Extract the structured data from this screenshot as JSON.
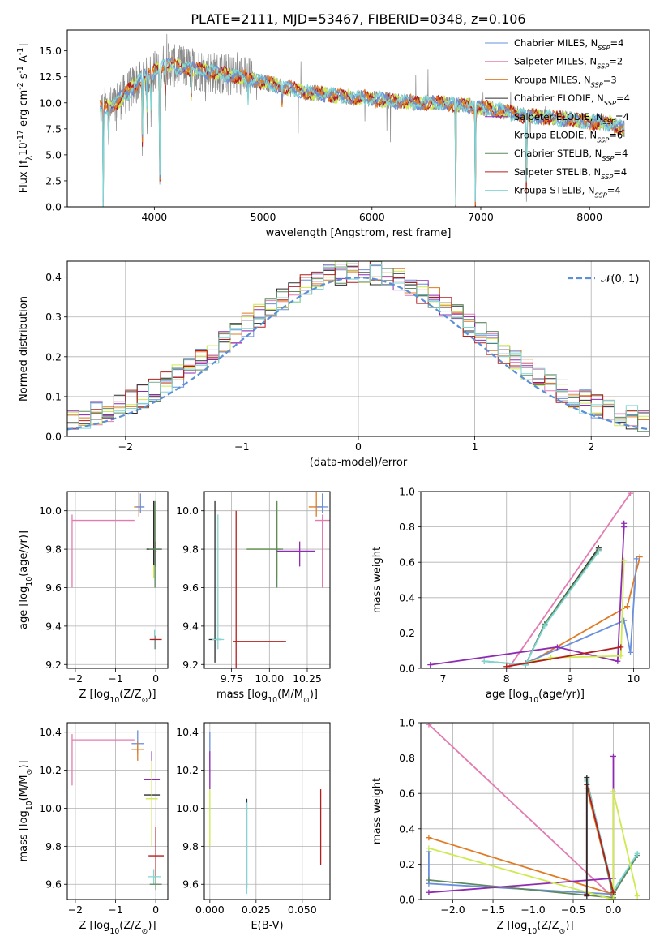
{
  "figure_title": "PLATE=2111, MJD=53467, FIBERID=0348, z=0.106",
  "colors": {
    "Chabrier MILES": "#6a8fdc",
    "Salpeter MILES": "#e37bb1",
    "Kroupa MILES": "#e07a23",
    "Chabrier ELODIE": "#2b2b2b",
    "Salpeter ELODIE": "#8f2bb3",
    "Kroupa ELODIE": "#cdea4f",
    "Chabrier STELIB": "#5f8a5f",
    "Salpeter STELIB": "#b31f1f",
    "Kroupa STELIB": "#7fd6d3",
    "data": "#888888",
    "normal": "#5b8fd6",
    "grid": "#b0b0b0"
  },
  "chart_data": [
    {
      "id": "spectrum",
      "type": "line",
      "title": "PLATE=2111, MJD=53467, FIBERID=0348, z=0.106",
      "xlabel": "wavelength [Angstrom, rest frame]",
      "ylabel": "Flux [f$_\\lambda$10$^{-17}$ erg cm$^{-2}$ s$^{-1}$ A$^{-1}$]",
      "xlim": [
        3200,
        8550
      ],
      "ylim": [
        0,
        17
      ],
      "xticks": [
        4000,
        5000,
        6000,
        7000,
        8000
      ],
      "yticks": [
        0.0,
        2.5,
        5.0,
        7.5,
        10.0,
        12.5,
        15.0
      ],
      "grid": false,
      "legend_position": "right",
      "legend": [
        {
          "label": "Chabrier MILES, N",
          "sub": "SSP",
          "tail": "=4",
          "series": "Chabrier MILES"
        },
        {
          "label": "Salpeter MILES, N",
          "sub": "SSP",
          "tail": "=2",
          "series": "Salpeter MILES"
        },
        {
          "label": "Kroupa MILES, N",
          "sub": "SSP",
          "tail": "=3",
          "series": "Kroupa MILES"
        },
        {
          "label": "Chabrier ELODIE, N",
          "sub": "SSP",
          "tail": "=4",
          "series": "Chabrier ELODIE"
        },
        {
          "label": "Salpeter ELODIE, N",
          "sub": "SSP",
          "tail": "=4",
          "series": "Salpeter ELODIE"
        },
        {
          "label": "Kroupa ELODIE, N",
          "sub": "SSP",
          "tail": "=6",
          "series": "Kroupa ELODIE"
        },
        {
          "label": "Chabrier STELIB, N",
          "sub": "SSP",
          "tail": "=4",
          "series": "Chabrier STELIB"
        },
        {
          "label": "Salpeter STELIB, N",
          "sub": "SSP",
          "tail": "=4",
          "series": "Salpeter STELIB"
        },
        {
          "label": "Kroupa STELIB, N",
          "sub": "SSP",
          "tail": "=4",
          "series": "Kroupa STELIB"
        }
      ],
      "continuum": {
        "x": [
          3500,
          3600,
          3700,
          3800,
          3900,
          4000,
          4100,
          4200,
          4400,
          4600,
          4800,
          5000,
          5200,
          5400,
          5600,
          5800,
          6000,
          6200,
          6400,
          6600,
          6800,
          7000,
          7200,
          7400,
          7600,
          7800,
          8000,
          8200,
          8320
        ],
        "y": [
          9.5,
          9.6,
          10.5,
          11.5,
          12.5,
          13.0,
          13.8,
          13.5,
          13.2,
          12.8,
          12.5,
          12.0,
          11.5,
          11.0,
          10.8,
          10.5,
          10.4,
          10.2,
          10.0,
          10.0,
          9.8,
          9.6,
          9.2,
          8.8,
          8.6,
          8.4,
          8.2,
          8.0,
          7.5
        ]
      },
      "absorption_lines": [
        {
          "x": 3530,
          "depth": 9.5
        },
        {
          "x": 3580,
          "depth": 3.0
        },
        {
          "x": 3890,
          "depth": 6.0
        },
        {
          "x": 3934,
          "depth": 4.5
        },
        {
          "x": 3970,
          "depth": 4.0
        },
        {
          "x": 4050,
          "depth": 13.5
        },
        {
          "x": 4102,
          "depth": 3.0
        },
        {
          "x": 4340,
          "depth": 2.5
        },
        {
          "x": 4861,
          "depth": 2.0
        },
        {
          "x": 5175,
          "depth": 1.5
        },
        {
          "x": 6770,
          "depth": 10.0
        },
        {
          "x": 6950,
          "depth": 9.5
        },
        {
          "x": 7420,
          "depth": 8.8
        }
      ]
    },
    {
      "id": "residuals",
      "type": "area",
      "xlabel": "(data-model)/error",
      "ylabel": "Normed distribution",
      "xlim": [
        -2.5,
        2.5
      ],
      "ylim": [
        0,
        0.44
      ],
      "xticks": [
        -2,
        -1,
        0,
        1,
        2
      ],
      "yticks": [
        0.0,
        0.1,
        0.2,
        0.3,
        0.4
      ],
      "grid": true,
      "legend_position": "top-right",
      "legend": [
        {
          "label": "𝒩(0, 1)",
          "series": "normal"
        }
      ],
      "normal_curve": {
        "mu": 0,
        "sigma": 1
      },
      "bin_width": 0.1
    },
    {
      "id": "age_vs_Z",
      "type": "scatter",
      "xlabel": "Z [log$_{10}$(Z/Z$_\\odot$)]",
      "ylabel": "age  [log$_{10}$(age/yr)]",
      "xlim": [
        -2.2,
        0.3
      ],
      "ylim": [
        9.18,
        10.1
      ],
      "xticks": [
        -2,
        -1,
        0
      ],
      "yticks": [
        9.2,
        9.4,
        9.6,
        9.8,
        10.0
      ],
      "grid": true,
      "series": [
        {
          "name": "Salpeter MILES",
          "x": -2.08,
          "y": 9.95,
          "xerr": [
            0,
            1.55
          ],
          "yerr": [
            0.35,
            0.03
          ]
        },
        {
          "name": "Kroupa MILES",
          "x": -0.42,
          "y": 10.02,
          "xerr": [
            0.12,
            0.12
          ],
          "yerr": [
            0.05,
            0.09
          ]
        },
        {
          "name": "Chabrier MILES",
          "x": -0.38,
          "y": 10.02,
          "xerr": [
            0.1,
            0.1
          ],
          "yerr": [
            0.03,
            0.07
          ]
        },
        {
          "name": "Kroupa ELODIE",
          "x": -0.05,
          "y": 9.8,
          "xerr": [
            0.06,
            0.06
          ],
          "yerr": [
            0.15,
            0.2
          ]
        },
        {
          "name": "Salpeter ELODIE",
          "x": 0.0,
          "y": 9.79,
          "xerr": [
            0.02,
            0.02
          ],
          "yerr": [
            0.08,
            0.05
          ]
        },
        {
          "name": "Chabrier ELODIE",
          "x": -0.05,
          "y": 9.8,
          "xerr": [
            0.18,
            0.2
          ],
          "yerr": [
            0.08,
            0.25
          ]
        },
        {
          "name": "Chabrier STELIB",
          "x": -0.02,
          "y": 9.8,
          "xerr": [
            0.15,
            0.15
          ],
          "yerr": [
            0.2,
            0.25
          ]
        },
        {
          "name": "Kroupa STELIB",
          "x": -0.03,
          "y": 9.33,
          "xerr": [
            0.06,
            0.06
          ],
          "yerr": [
            0.05,
            0.05
          ]
        },
        {
          "name": "Salpeter STELIB",
          "x": 0.0,
          "y": 9.33,
          "xerr": [
            0.15,
            0.15
          ],
          "yerr": [
            0.05,
            0.02
          ]
        }
      ]
    },
    {
      "id": "age_vs_mass",
      "type": "scatter",
      "xlabel": "mass [log$_{10}$(M/M$_\\odot$)]",
      "xlim": [
        9.57,
        10.4
      ],
      "ylim": [
        9.18,
        10.1
      ],
      "xticks": [
        9.75,
        10.0,
        10.25
      ],
      "xticklabels": [
        "9.75",
        "10.00",
        "10.25"
      ],
      "yticks": [
        9.2,
        9.4,
        9.6,
        9.8,
        10.0
      ],
      "grid": true,
      "series": [
        {
          "name": "Salpeter MILES",
          "x": 10.35,
          "y": 9.95,
          "xerr": [
            0.05,
            0.05
          ],
          "yerr": [
            0.35,
            0.03
          ]
        },
        {
          "name": "Kroupa MILES",
          "x": 10.31,
          "y": 10.02,
          "xerr": [
            0.05,
            0.04
          ],
          "yerr": [
            0.05,
            0.09
          ]
        },
        {
          "name": "Chabrier MILES",
          "x": 10.35,
          "y": 10.02,
          "xerr": [
            0.04,
            0.04
          ],
          "yerr": [
            0.03,
            0.07
          ]
        },
        {
          "name": "Kroupa ELODIE",
          "x": 10.05,
          "y": 9.8,
          "xerr": [
            0.2,
            0.02
          ],
          "yerr": [
            0.15,
            0.25
          ]
        },
        {
          "name": "Chabrier STELIB",
          "x": 10.05,
          "y": 9.8,
          "xerr": [
            0.2,
            0.04
          ],
          "yerr": [
            0.2,
            0.25
          ]
        },
        {
          "name": "Salpeter ELODIE",
          "x": 10.2,
          "y": 9.79,
          "xerr": [
            0.15,
            0.1
          ],
          "yerr": [
            0.08,
            0.05
          ]
        },
        {
          "name": "Chabrier ELODIE",
          "x": 9.64,
          "y": 9.33,
          "xerr": [
            0.04,
            0.04
          ],
          "yerr": [
            0.12,
            0.72
          ]
        },
        {
          "name": "Kroupa STELIB",
          "x": 9.66,
          "y": 9.33,
          "xerr": [
            0.04,
            0.04
          ],
          "yerr": [
            0.05,
            0.65
          ]
        },
        {
          "name": "Salpeter STELIB",
          "x": 9.78,
          "y": 9.32,
          "xerr": [
            0.02,
            0.33
          ],
          "yerr": [
            0.15,
            0.68
          ]
        }
      ]
    },
    {
      "id": "weight_vs_age",
      "type": "line",
      "xlabel": "age  [log$_{10}$(age/yr)]",
      "ylabel": "mass weight",
      "xlim": [
        6.65,
        10.25
      ],
      "ylim": [
        0,
        1.0
      ],
      "xticks": [
        7,
        8,
        9,
        10
      ],
      "yticks": [
        0.0,
        0.2,
        0.4,
        0.6,
        0.8,
        1.0
      ],
      "grid": true,
      "series": [
        {
          "name": "Salpeter MILES",
          "x": [
            8.05,
            9.95
          ],
          "y": [
            0.01,
            0.99
          ]
        },
        {
          "name": "Kroupa MILES",
          "x": [
            8.3,
            9.9,
            10.1
          ],
          "y": [
            0.02,
            0.35,
            0.63
          ]
        },
        {
          "name": "Chabrier MILES",
          "x": [
            8.3,
            9.85,
            9.95,
            10.05
          ],
          "y": [
            0.03,
            0.27,
            0.09,
            0.62
          ]
        },
        {
          "name": "Salpeter ELODIE",
          "x": [
            6.8,
            8.8,
            9.75,
            9.85,
            9.85
          ],
          "y": [
            0.02,
            0.12,
            0.04,
            0.8,
            0.82
          ]
        },
        {
          "name": "Kroupa ELODIE",
          "x": [
            8.0,
            8.7,
            9.8,
            9.85
          ],
          "y": [
            0.01,
            0.06,
            0.07,
            0.61
          ]
        },
        {
          "name": "Chabrier ELODIE",
          "x": [
            8.3,
            8.6,
            9.45
          ],
          "y": [
            0.02,
            0.25,
            0.68
          ]
        },
        {
          "name": "Chabrier STELIB",
          "x": [
            7.65,
            8.3,
            8.6,
            9.45
          ],
          "y": [
            0.04,
            0.02,
            0.25,
            0.67
          ]
        },
        {
          "name": "Kroupa STELIB",
          "x": [
            7.65,
            8.3,
            8.6,
            9.45
          ],
          "y": [
            0.04,
            0.02,
            0.24,
            0.66
          ]
        },
        {
          "name": "Salpeter STELIB",
          "x": [
            8.0,
            9.8
          ],
          "y": [
            0.01,
            0.12
          ]
        }
      ]
    },
    {
      "id": "mass_vs_Z",
      "type": "scatter",
      "xlabel": "Z [log$_{10}$(Z/Z$_\\odot$)]",
      "ylabel": "mass [log$_{10}$(M/M$_\\odot$)]",
      "xlim": [
        -2.2,
        0.3
      ],
      "ylim": [
        9.52,
        10.45
      ],
      "xticks": [
        -2,
        -1,
        0
      ],
      "yticks": [
        9.6,
        9.8,
        10.0,
        10.2,
        10.4
      ],
      "grid": true,
      "series": [
        {
          "name": "Salpeter MILES",
          "x": -2.08,
          "y": 10.36,
          "xerr": [
            0,
            1.55
          ],
          "yerr": [
            0.24,
            0.03
          ]
        },
        {
          "name": "Chabrier MILES",
          "x": -0.45,
          "y": 10.34,
          "xerr": [
            0.15,
            0.15
          ],
          "yerr": [
            0.05,
            0.07
          ]
        },
        {
          "name": "Kroupa MILES",
          "x": -0.45,
          "y": 10.31,
          "xerr": [
            0.15,
            0.15
          ],
          "yerr": [
            0.06,
            0.04
          ]
        },
        {
          "name": "Salpeter ELODIE",
          "x": -0.1,
          "y": 10.15,
          "xerr": [
            0.2,
            0.2
          ],
          "yerr": [
            0.15,
            0.15
          ]
        },
        {
          "name": "Chabrier ELODIE",
          "x": -0.1,
          "y": 10.07,
          "xerr": [
            0.2,
            0.2
          ],
          "yerr": [
            0.15,
            0.15
          ]
        },
        {
          "name": "Kroupa ELODIE",
          "x": -0.1,
          "y": 10.05,
          "xerr": [
            0.15,
            0.15
          ],
          "yerr": [
            0.25,
            0.2
          ]
        },
        {
          "name": "Salpeter STELIB",
          "x": 0.0,
          "y": 9.75,
          "xerr": [
            0.18,
            0.2
          ],
          "yerr": [
            0.15,
            0.15
          ]
        },
        {
          "name": "Kroupa STELIB",
          "x": -0.05,
          "y": 9.64,
          "xerr": [
            0.15,
            0.18
          ],
          "yerr": [
            0.04,
            0.04
          ]
        },
        {
          "name": "Chabrier STELIB",
          "x": 0.0,
          "y": 9.6,
          "xerr": [
            0.15,
            0.15
          ],
          "yerr": [
            0.03,
            0.03
          ]
        }
      ]
    },
    {
      "id": "mass_vs_ebv",
      "type": "scatter",
      "xlabel": "E(B-V)",
      "xlim": [
        -0.003,
        0.065
      ],
      "ylim": [
        9.52,
        10.45
      ],
      "xticks": [
        0.0,
        0.025,
        0.05
      ],
      "xticklabels": [
        "0.000",
        "0.025",
        "0.050"
      ],
      "yticks": [
        9.6,
        9.8,
        10.0,
        10.2,
        10.4
      ],
      "grid": true,
      "series": [
        {
          "name": "Chabrier MILES",
          "x": 0.0,
          "y": 10.3,
          "yerr": [
            0.1,
            0.1
          ]
        },
        {
          "name": "Salpeter ELODIE",
          "x": 0.0,
          "y": 10.2,
          "yerr": [
            0.1,
            0.1
          ]
        },
        {
          "name": "Kroupa ELODIE",
          "x": 0.0,
          "y": 10.0,
          "yerr": [
            0.2,
            0.1
          ]
        },
        {
          "name": "Chabrier ELODIE",
          "x": 0.02,
          "y": 9.8,
          "yerr": [
            0.22,
            0.25
          ]
        },
        {
          "name": "Kroupa STELIB",
          "x": 0.02,
          "y": 9.8,
          "yerr": [
            0.25,
            0.23
          ]
        },
        {
          "name": "Salpeter STELIB",
          "x": 0.06,
          "y": 9.9,
          "yerr": [
            0.2,
            0.2
          ]
        }
      ]
    },
    {
      "id": "weight_vs_Z",
      "type": "line",
      "xlabel": "Z [log$_{10}$(Z/Z$_\\odot$)]",
      "ylabel": "mass weight",
      "xlim": [
        -2.4,
        0.45
      ],
      "ylim": [
        0,
        1.0
      ],
      "xticks": [
        -2.0,
        -1.5,
        -1.0,
        -0.5,
        0.0
      ],
      "yticks": [
        0.0,
        0.2,
        0.4,
        0.6,
        0.8,
        1.0
      ],
      "grid": true,
      "series": [
        {
          "name": "Salpeter MILES",
          "x": [
            -2.3,
            0.0
          ],
          "y": [
            0.99,
            0.01
          ]
        },
        {
          "name": "Kroupa MILES",
          "x": [
            -2.3,
            0.0,
            -0.33
          ],
          "y": [
            0.35,
            0.03,
            0.63
          ]
        },
        {
          "name": "Chabrier MILES",
          "x": [
            -2.3,
            -2.3,
            0.0,
            0.3
          ],
          "y": [
            0.27,
            0.09,
            0.03,
            0.25
          ]
        },
        {
          "name": "Chabrier STELIB",
          "x": [
            -2.3,
            0.0,
            -0.33,
            0.0,
            0.3
          ],
          "y": [
            0.11,
            0.01,
            0.68,
            0.03,
            0.25
          ]
        },
        {
          "name": "Kroupa STELIB",
          "x": [
            -0.33,
            0.0,
            0.3
          ],
          "y": [
            0.67,
            0.05,
            0.26
          ]
        },
        {
          "name": "Salpeter ELODIE",
          "x": [
            -2.3,
            0.0,
            0.0
          ],
          "y": [
            0.04,
            0.12,
            0.81
          ]
        },
        {
          "name": "Kroupa ELODIE",
          "x": [
            -2.3,
            0.0,
            0.0,
            0.3
          ],
          "y": [
            0.29,
            0.0,
            0.61,
            0.02
          ]
        },
        {
          "name": "Salpeter STELIB",
          "x": [
            -0.33,
            -0.33,
            0.0
          ],
          "y": [
            0.03,
            0.65,
            0.04
          ]
        },
        {
          "name": "Chabrier ELODIE",
          "x": [
            -0.33,
            -0.33
          ],
          "y": [
            0.02,
            0.69
          ]
        }
      ]
    }
  ]
}
